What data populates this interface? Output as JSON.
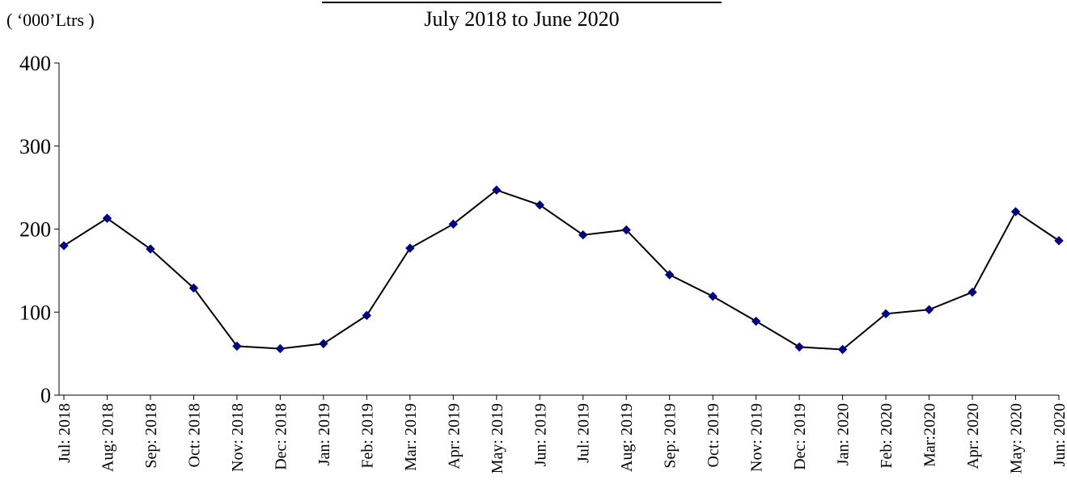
{
  "chart_data": {
    "type": "line",
    "title": "July 2018 to June 2020",
    "unit_label": "( ‘000’Ltrs )",
    "xlabel": "",
    "ylabel": "",
    "ylim": [
      0,
      400
    ],
    "yticks": [
      0,
      100,
      200,
      300,
      400
    ],
    "grid": false,
    "legend": "none",
    "categories": [
      "Jul: 2018",
      "Aug: 2018",
      "Sep: 2018",
      "Oct: 2018",
      "Nov: 2018",
      "Dec: 2018",
      "Jan: 2019",
      "Feb: 2019",
      "Mar: 2019",
      "Apr: 2019",
      "May: 2019",
      "Jun: 2019",
      "Jul: 2019",
      "Aug: 2019",
      "Sep: 2019",
      "Oct: 2019",
      "Nov: 2019",
      "Dec: 2019",
      "Jan: 2020",
      "Feb: 2020",
      "Mar:2020",
      "Apr: 2020",
      "May: 2020",
      "Jun: 2020"
    ],
    "series": [
      {
        "values": [
          180,
          213,
          176,
          129,
          59,
          56,
          62,
          96,
          177,
          206,
          247,
          229,
          193,
          199,
          145,
          119,
          89,
          58,
          55,
          98,
          103,
          124,
          221,
          186
        ],
        "line_color": "#000000",
        "marker_color": "#000080",
        "marker": "diamond"
      }
    ]
  }
}
